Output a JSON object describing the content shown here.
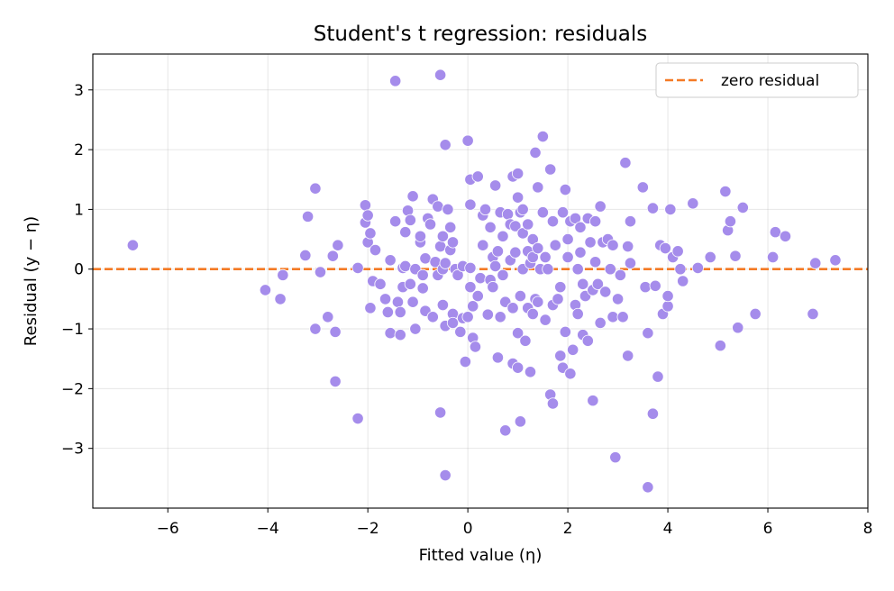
{
  "chart_data": {
    "type": "scatter",
    "title": "Student's t regression: residuals",
    "xlabel": "Fitted value (η)",
    "ylabel": "Residual (y − η)",
    "xlim": [
      -7.5,
      8
    ],
    "ylim": [
      -4,
      3.6
    ],
    "xticks": [
      -6,
      -4,
      -2,
      0,
      2,
      4,
      6,
      8
    ],
    "yticks": [
      -3,
      -2,
      -1,
      0,
      1,
      2,
      3
    ],
    "xtick_labels": [
      "−6",
      "−4",
      "−2",
      "0",
      "2",
      "4",
      "6",
      "8"
    ],
    "ytick_labels": [
      "−3",
      "−2",
      "−1",
      "0",
      "1",
      "2",
      "3"
    ],
    "grid": true,
    "legend": {
      "position": "top-right",
      "entries": [
        {
          "label": "zero residual",
          "style": "dashed-line"
        }
      ]
    },
    "reference_line": {
      "y": 0,
      "color": "#f47a25",
      "style": "dashed",
      "label": "zero residual"
    },
    "point_color": "#a58ceb",
    "series": [
      {
        "points": [
          [
            -6.7,
            0.4
          ],
          [
            -4.05,
            -0.35
          ],
          [
            -3.75,
            -0.5
          ],
          [
            -3.7,
            -0.1
          ],
          [
            -3.25,
            0.23
          ],
          [
            -3.2,
            0.88
          ],
          [
            -3.05,
            1.35
          ],
          [
            -3.05,
            -1.0
          ],
          [
            -2.95,
            -0.05
          ],
          [
            -2.8,
            -0.8
          ],
          [
            -2.7,
            0.22
          ],
          [
            -2.65,
            -1.88
          ],
          [
            -2.65,
            -1.05
          ],
          [
            -2.6,
            0.4
          ],
          [
            -2.2,
            -2.5
          ],
          [
            -2.2,
            0.02
          ],
          [
            -2.05,
            1.07
          ],
          [
            -2.05,
            0.78
          ],
          [
            -2.0,
            0.9
          ],
          [
            -2.0,
            0.45
          ],
          [
            -1.95,
            0.6
          ],
          [
            -1.95,
            -0.65
          ],
          [
            -1.9,
            -0.2
          ],
          [
            -1.85,
            0.32
          ],
          [
            -1.75,
            -0.25
          ],
          [
            -1.65,
            -0.5
          ],
          [
            -1.6,
            -0.72
          ],
          [
            -1.55,
            -1.07
          ],
          [
            -1.55,
            0.15
          ],
          [
            -1.45,
            3.15
          ],
          [
            -1.45,
            0.8
          ],
          [
            -1.4,
            -0.55
          ],
          [
            -1.35,
            -1.1
          ],
          [
            -1.35,
            -0.72
          ],
          [
            -1.3,
            -0.3
          ],
          [
            -1.3,
            0.02
          ],
          [
            -1.25,
            0.05
          ],
          [
            -1.25,
            0.62
          ],
          [
            -1.2,
            0.98
          ],
          [
            -1.15,
            0.82
          ],
          [
            -1.15,
            -0.25
          ],
          [
            -1.1,
            1.22
          ],
          [
            -1.1,
            -0.55
          ],
          [
            -1.05,
            -1.0
          ],
          [
            -1.05,
            0.0
          ],
          [
            -0.95,
            0.45
          ],
          [
            -0.95,
            0.55
          ],
          [
            -0.9,
            -0.1
          ],
          [
            -0.9,
            -0.32
          ],
          [
            -0.85,
            0.18
          ],
          [
            -0.85,
            -0.7
          ],
          [
            -0.8,
            0.85
          ],
          [
            -0.75,
            0.75
          ],
          [
            -0.7,
            1.17
          ],
          [
            -0.7,
            -0.8
          ],
          [
            -0.65,
            0.12
          ],
          [
            -0.6,
            1.05
          ],
          [
            -0.6,
            -0.1
          ],
          [
            -0.55,
            3.25
          ],
          [
            -0.55,
            0.38
          ],
          [
            -0.55,
            -2.4
          ],
          [
            -0.5,
            0.55
          ],
          [
            -0.5,
            -0.6
          ],
          [
            -0.5,
            0.0
          ],
          [
            -0.45,
            -3.45
          ],
          [
            -0.45,
            2.08
          ],
          [
            -0.45,
            0.1
          ],
          [
            -0.45,
            -0.95
          ],
          [
            -0.4,
            1.0
          ],
          [
            -0.35,
            0.7
          ],
          [
            -0.35,
            0.32
          ],
          [
            -0.3,
            -0.75
          ],
          [
            -0.3,
            -0.9
          ],
          [
            -0.3,
            0.45
          ],
          [
            -0.25,
            0.0
          ],
          [
            -0.2,
            -0.1
          ],
          [
            -0.15,
            -1.05
          ],
          [
            -0.1,
            0.05
          ],
          [
            -0.1,
            -0.82
          ],
          [
            -0.05,
            -1.55
          ],
          [
            0.0,
            2.15
          ],
          [
            0.0,
            -0.8
          ],
          [
            0.05,
            1.08
          ],
          [
            0.05,
            1.5
          ],
          [
            0.05,
            -0.3
          ],
          [
            0.05,
            0.02
          ],
          [
            0.1,
            -1.15
          ],
          [
            0.1,
            -0.62
          ],
          [
            0.15,
            -1.3
          ],
          [
            0.2,
            -0.45
          ],
          [
            0.2,
            1.55
          ],
          [
            0.25,
            -0.15
          ],
          [
            0.3,
            0.4
          ],
          [
            0.3,
            0.9
          ],
          [
            0.35,
            1.0
          ],
          [
            0.4,
            -0.76
          ],
          [
            0.45,
            -0.18
          ],
          [
            0.45,
            0.7
          ],
          [
            0.5,
            0.2
          ],
          [
            0.5,
            -0.3
          ],
          [
            0.55,
            1.4
          ],
          [
            0.55,
            0.05
          ],
          [
            0.6,
            -1.48
          ],
          [
            0.6,
            0.3
          ],
          [
            0.65,
            0.95
          ],
          [
            0.65,
            -0.8
          ],
          [
            0.7,
            0.55
          ],
          [
            0.7,
            -0.1
          ],
          [
            0.75,
            -2.7
          ],
          [
            0.75,
            -0.55
          ],
          [
            0.8,
            0.92
          ],
          [
            0.85,
            0.75
          ],
          [
            0.85,
            0.15
          ],
          [
            0.9,
            1.55
          ],
          [
            0.9,
            -0.65
          ],
          [
            0.9,
            -1.58
          ],
          [
            0.95,
            0.28
          ],
          [
            0.95,
            0.72
          ],
          [
            1.0,
            1.6
          ],
          [
            1.0,
            1.2
          ],
          [
            1.0,
            -1.07
          ],
          [
            1.0,
            -1.65
          ],
          [
            1.05,
            0.95
          ],
          [
            1.05,
            -2.55
          ],
          [
            1.05,
            -0.45
          ],
          [
            1.1,
            0.6
          ],
          [
            1.1,
            1.0
          ],
          [
            1.1,
            0.0
          ],
          [
            1.15,
            -1.2
          ],
          [
            1.2,
            -0.65
          ],
          [
            1.2,
            0.75
          ],
          [
            1.2,
            0.3
          ],
          [
            1.25,
            -1.72
          ],
          [
            1.25,
            0.1
          ],
          [
            1.3,
            -0.75
          ],
          [
            1.3,
            0.5
          ],
          [
            1.3,
            0.2
          ],
          [
            1.35,
            1.95
          ],
          [
            1.35,
            -0.5
          ],
          [
            1.4,
            1.37
          ],
          [
            1.4,
            0.35
          ],
          [
            1.4,
            -0.55
          ],
          [
            1.45,
            0.0
          ],
          [
            1.5,
            2.22
          ],
          [
            1.5,
            0.95
          ],
          [
            1.55,
            -0.85
          ],
          [
            1.55,
            0.2
          ],
          [
            1.6,
            0.0
          ],
          [
            1.65,
            1.67
          ],
          [
            1.65,
            -2.1
          ],
          [
            1.7,
            -2.25
          ],
          [
            1.7,
            -0.6
          ],
          [
            1.7,
            0.8
          ],
          [
            1.75,
            0.4
          ],
          [
            1.8,
            -0.5
          ],
          [
            1.85,
            -1.45
          ],
          [
            1.85,
            -0.3
          ],
          [
            1.9,
            0.95
          ],
          [
            1.9,
            -1.65
          ],
          [
            1.95,
            1.33
          ],
          [
            1.95,
            -1.05
          ],
          [
            2.0,
            0.2
          ],
          [
            2.0,
            0.5
          ],
          [
            2.05,
            -1.75
          ],
          [
            2.05,
            0.8
          ],
          [
            2.1,
            -1.35
          ],
          [
            2.15,
            0.85
          ],
          [
            2.15,
            -0.6
          ],
          [
            2.2,
            0.0
          ],
          [
            2.2,
            -0.75
          ],
          [
            2.25,
            0.7
          ],
          [
            2.25,
            0.28
          ],
          [
            2.3,
            -1.1
          ],
          [
            2.3,
            -0.25
          ],
          [
            2.35,
            -0.45
          ],
          [
            2.4,
            0.85
          ],
          [
            2.4,
            -1.2
          ],
          [
            2.45,
            0.45
          ],
          [
            2.5,
            -2.2
          ],
          [
            2.5,
            -0.35
          ],
          [
            2.55,
            0.8
          ],
          [
            2.55,
            0.12
          ],
          [
            2.6,
            -0.25
          ],
          [
            2.65,
            -0.9
          ],
          [
            2.65,
            1.05
          ],
          [
            2.7,
            0.45
          ],
          [
            2.75,
            -0.38
          ],
          [
            2.8,
            0.5
          ],
          [
            2.85,
            0.0
          ],
          [
            2.9,
            0.4
          ],
          [
            2.9,
            -0.8
          ],
          [
            2.95,
            -3.15
          ],
          [
            3.0,
            -0.5
          ],
          [
            3.05,
            -0.1
          ],
          [
            3.1,
            -0.8
          ],
          [
            3.15,
            1.78
          ],
          [
            3.2,
            0.38
          ],
          [
            3.2,
            -1.45
          ],
          [
            3.25,
            0.8
          ],
          [
            3.25,
            0.1
          ],
          [
            3.5,
            1.37
          ],
          [
            3.55,
            -0.3
          ],
          [
            3.6,
            -3.65
          ],
          [
            3.6,
            -1.07
          ],
          [
            3.7,
            1.02
          ],
          [
            3.7,
            -2.42
          ],
          [
            3.75,
            -0.28
          ],
          [
            3.8,
            -1.8
          ],
          [
            3.85,
            0.4
          ],
          [
            3.9,
            -0.75
          ],
          [
            3.95,
            0.35
          ],
          [
            4.0,
            -0.62
          ],
          [
            4.0,
            -0.45
          ],
          [
            4.05,
            1.0
          ],
          [
            4.1,
            0.2
          ],
          [
            4.2,
            0.3
          ],
          [
            4.25,
            0.0
          ],
          [
            4.3,
            -0.2
          ],
          [
            4.5,
            1.1
          ],
          [
            4.6,
            0.02
          ],
          [
            4.85,
            0.2
          ],
          [
            5.05,
            -1.28
          ],
          [
            5.15,
            1.3
          ],
          [
            5.2,
            0.65
          ],
          [
            5.25,
            0.8
          ],
          [
            5.35,
            0.22
          ],
          [
            5.4,
            -0.98
          ],
          [
            5.5,
            1.03
          ],
          [
            5.75,
            -0.75
          ],
          [
            6.1,
            0.2
          ],
          [
            6.15,
            0.62
          ],
          [
            6.35,
            0.55
          ],
          [
            6.9,
            -0.75
          ],
          [
            6.95,
            0.1
          ],
          [
            7.35,
            0.15
          ]
        ]
      }
    ]
  }
}
